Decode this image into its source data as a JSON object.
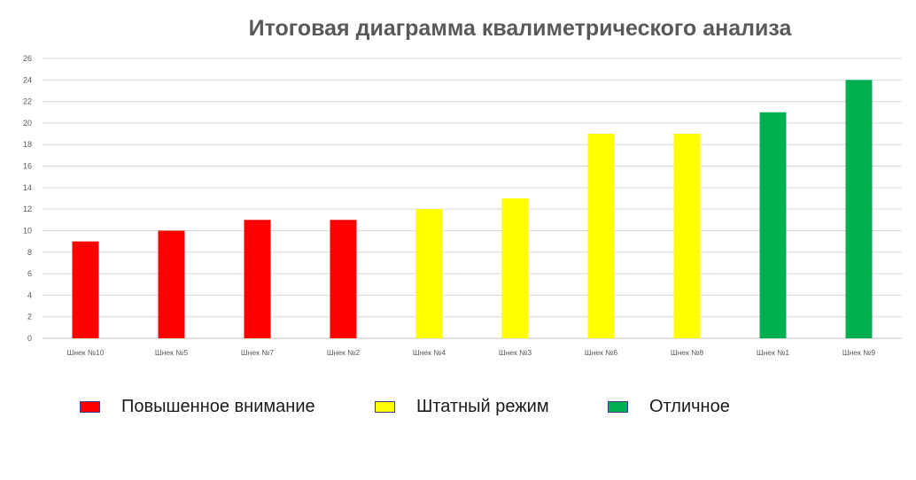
{
  "chart_data": {
    "type": "bar",
    "title": "Итоговая диаграмма квалиметрического анализа",
    "categories": [
      "Шнек №10",
      "Шнек №5",
      "Шнек №7",
      "Шнек №2",
      "Шнек №4",
      "Шнек №3",
      "Шнек №6",
      "Шнек №8",
      "Шнек №1",
      "Шнек №9"
    ],
    "values": [
      9,
      10,
      11,
      11,
      12,
      13,
      19,
      19,
      21,
      24
    ],
    "bar_groups": [
      0,
      0,
      0,
      0,
      1,
      1,
      1,
      1,
      2,
      2
    ],
    "ylim": [
      0,
      26
    ],
    "yticks": [
      0,
      2,
      4,
      6,
      8,
      10,
      12,
      14,
      16,
      18,
      20,
      22,
      24,
      26
    ],
    "grid": true,
    "legend_position": "bottom",
    "legend": [
      {
        "label": "Повышенное внимание",
        "color": "#ff0000"
      },
      {
        "label": "Штатный режим",
        "color": "#ffff00"
      },
      {
        "label": "Отличное",
        "color": "#00b050"
      }
    ]
  }
}
